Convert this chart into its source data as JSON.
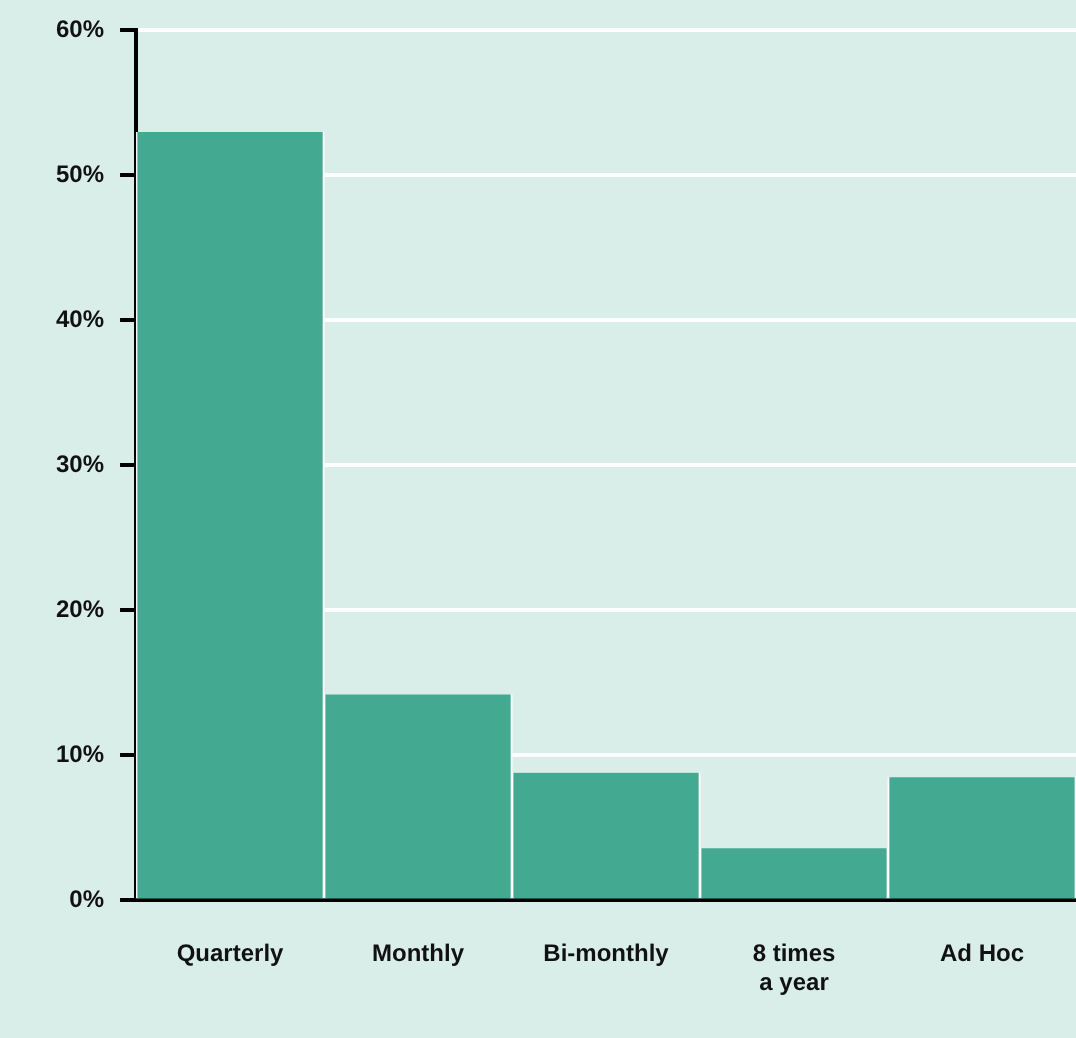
{
  "chart_data": {
    "type": "bar",
    "categories": [
      "Quarterly",
      "Monthly",
      "Bi-monthly",
      "8 times a year",
      "Ad Hoc"
    ],
    "values": [
      53,
      14.2,
      8.8,
      3.6,
      8.5
    ],
    "color": "#44a991",
    "ylim": [
      0,
      60
    ],
    "yticks": [
      {
        "value": 0,
        "label": "0%"
      },
      {
        "value": 10,
        "label": "10%"
      },
      {
        "value": 20,
        "label": "20%"
      },
      {
        "value": 30,
        "label": "30%"
      },
      {
        "value": 40,
        "label": "40%"
      },
      {
        "value": 50,
        "label": "50%"
      },
      {
        "value": 60,
        "label": "60%"
      }
    ],
    "grid": "y",
    "legend": false
  }
}
